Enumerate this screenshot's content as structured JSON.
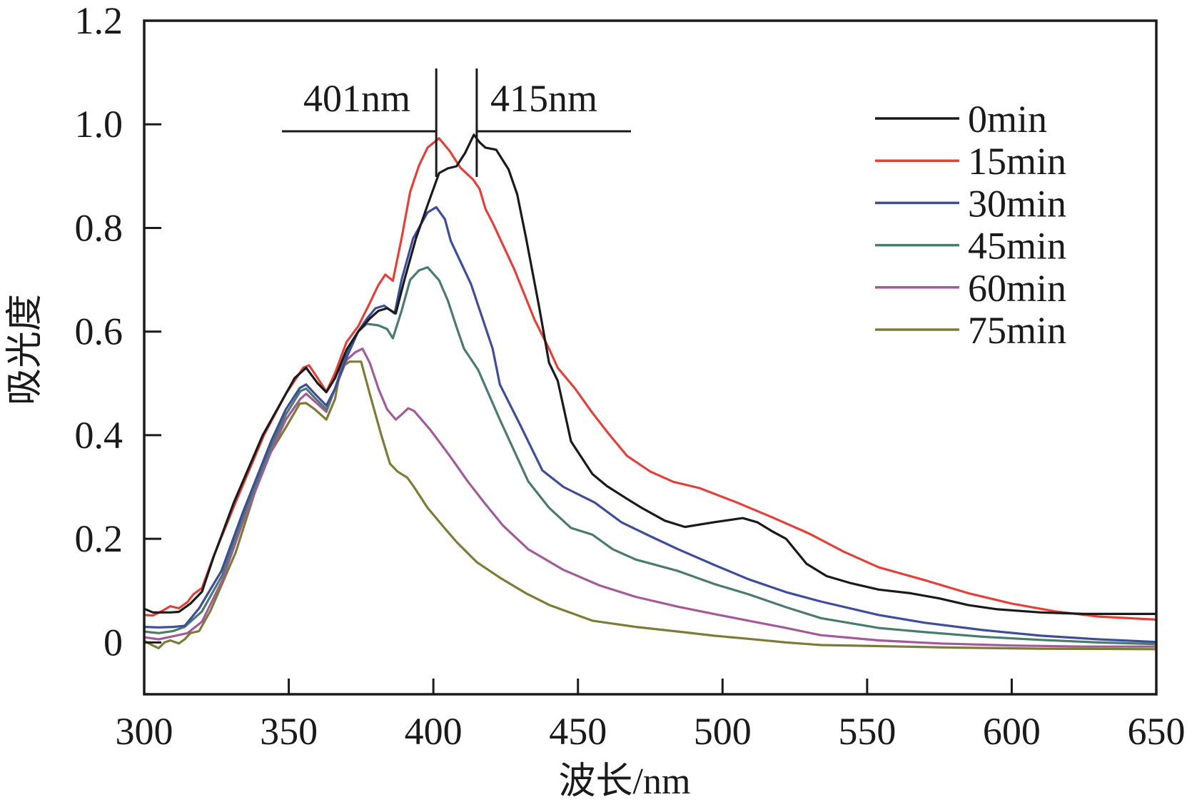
{
  "chart_data": {
    "type": "line",
    "title": "",
    "xlabel": "波长/nm",
    "ylabel": "吸光度",
    "xlim": [
      300,
      650
    ],
    "ylim": [
      -0.1,
      1.2
    ],
    "xticks": [
      300,
      350,
      400,
      450,
      500,
      550,
      600,
      650
    ],
    "xtick_labels": [
      "300",
      "350",
      "400",
      "450",
      "500",
      "550",
      "600",
      "650"
    ],
    "yticks": [
      0,
      0.2,
      0.4,
      0.6,
      0.8,
      1.0,
      1.2
    ],
    "ytick_labels": [
      "0",
      "0.2",
      "0.4",
      "0.6",
      "0.8",
      "1.0",
      "1.2"
    ],
    "grid": false,
    "legend_position": "top-right",
    "annotations": [
      {
        "label": "401nm",
        "x": 401,
        "side": "left"
      },
      {
        "label": "415nm",
        "x": 415,
        "side": "right"
      }
    ],
    "series": [
      {
        "name": "0min",
        "color": "#1a1a1a",
        "points": [
          [
            300,
            0.065
          ],
          [
            303,
            0.058
          ],
          [
            306,
            0.058
          ],
          [
            309,
            0.058
          ],
          [
            312,
            0.059
          ],
          [
            316,
            0.075
          ],
          [
            320,
            0.098
          ],
          [
            324,
            0.165
          ],
          [
            331,
            0.27
          ],
          [
            341,
            0.4
          ],
          [
            348,
            0.47
          ],
          [
            352,
            0.51
          ],
          [
            356,
            0.53
          ],
          [
            360,
            0.5
          ],
          [
            363,
            0.483
          ],
          [
            366,
            0.51
          ],
          [
            370,
            0.565
          ],
          [
            374,
            0.6
          ],
          [
            378,
            0.625
          ],
          [
            381,
            0.64
          ],
          [
            384,
            0.645
          ],
          [
            387,
            0.635
          ],
          [
            390,
            0.7
          ],
          [
            394,
            0.78
          ],
          [
            398,
            0.844
          ],
          [
            402,
            0.906
          ],
          [
            405,
            0.915
          ],
          [
            408,
            0.919
          ],
          [
            411,
            0.945
          ],
          [
            414,
            0.98
          ],
          [
            416,
            0.965
          ],
          [
            418,
            0.955
          ],
          [
            421.7,
            0.951
          ],
          [
            426,
            0.913
          ],
          [
            429,
            0.865
          ],
          [
            432,
            0.782
          ],
          [
            436.5,
            0.65
          ],
          [
            440,
            0.54
          ],
          [
            443,
            0.505
          ],
          [
            447.6,
            0.388
          ],
          [
            455,
            0.325
          ],
          [
            460,
            0.302
          ],
          [
            467,
            0.277
          ],
          [
            472,
            0.26
          ],
          [
            480,
            0.235
          ],
          [
            487,
            0.223
          ],
          [
            497,
            0.232
          ],
          [
            507,
            0.24
          ],
          [
            512,
            0.232
          ],
          [
            517,
            0.215
          ],
          [
            522,
            0.2
          ],
          [
            529,
            0.152
          ],
          [
            536,
            0.128
          ],
          [
            544,
            0.115
          ],
          [
            554,
            0.102
          ],
          [
            565,
            0.095
          ],
          [
            575,
            0.085
          ],
          [
            585,
            0.072
          ],
          [
            595,
            0.064
          ],
          [
            610,
            0.058
          ],
          [
            625,
            0.055
          ],
          [
            640,
            0.055
          ],
          [
            650,
            0.055
          ]
        ]
      },
      {
        "name": "15min",
        "color": "#e2403a",
        "points": [
          [
            300,
            0.053
          ],
          [
            303,
            0.052
          ],
          [
            306,
            0.06
          ],
          [
            309,
            0.07
          ],
          [
            312,
            0.066
          ],
          [
            315,
            0.078
          ],
          [
            317,
            0.093
          ],
          [
            320,
            0.105
          ],
          [
            324,
            0.166
          ],
          [
            331.6,
            0.27
          ],
          [
            341.5,
            0.401
          ],
          [
            349,
            0.48
          ],
          [
            355,
            0.53
          ],
          [
            357,
            0.535
          ],
          [
            360,
            0.51
          ],
          [
            363,
            0.484
          ],
          [
            366,
            0.52
          ],
          [
            370,
            0.58
          ],
          [
            374,
            0.61
          ],
          [
            378,
            0.655
          ],
          [
            381,
            0.69
          ],
          [
            383.4,
            0.71
          ],
          [
            386,
            0.698
          ],
          [
            389,
            0.78
          ],
          [
            392,
            0.87
          ],
          [
            395,
            0.92
          ],
          [
            398,
            0.955
          ],
          [
            402,
            0.973
          ],
          [
            405.7,
            0.948
          ],
          [
            409.4,
            0.916
          ],
          [
            413.8,
            0.893
          ],
          [
            416,
            0.875
          ],
          [
            418,
            0.837
          ],
          [
            420.5,
            0.81
          ],
          [
            428,
            0.72
          ],
          [
            435,
            0.623
          ],
          [
            440,
            0.567
          ],
          [
            443,
            0.53
          ],
          [
            449,
            0.49
          ],
          [
            455,
            0.443
          ],
          [
            461,
            0.4
          ],
          [
            467,
            0.36
          ],
          [
            475,
            0.33
          ],
          [
            483,
            0.31
          ],
          [
            492,
            0.298
          ],
          [
            505,
            0.27
          ],
          [
            517,
            0.242
          ],
          [
            530,
            0.21
          ],
          [
            542,
            0.175
          ],
          [
            554,
            0.145
          ],
          [
            570,
            0.12
          ],
          [
            585,
            0.095
          ],
          [
            600,
            0.075
          ],
          [
            615,
            0.06
          ],
          [
            630,
            0.05
          ],
          [
            650,
            0.044
          ]
        ]
      },
      {
        "name": "30min",
        "color": "#3d4d98",
        "points": [
          [
            300,
            0.03
          ],
          [
            305,
            0.029
          ],
          [
            310,
            0.03
          ],
          [
            314,
            0.032
          ],
          [
            319,
            0.066
          ],
          [
            326.7,
            0.138
          ],
          [
            334,
            0.249
          ],
          [
            344,
            0.39
          ],
          [
            349,
            0.45
          ],
          [
            353.8,
            0.491
          ],
          [
            356,
            0.498
          ],
          [
            359,
            0.48
          ],
          [
            363,
            0.457
          ],
          [
            366,
            0.49
          ],
          [
            370,
            0.55
          ],
          [
            374,
            0.6
          ],
          [
            377,
            0.625
          ],
          [
            380,
            0.645
          ],
          [
            383,
            0.65
          ],
          [
            386.6,
            0.635
          ],
          [
            389,
            0.7
          ],
          [
            393,
            0.78
          ],
          [
            398,
            0.83
          ],
          [
            401,
            0.84
          ],
          [
            404,
            0.817
          ],
          [
            406,
            0.775
          ],
          [
            413,
            0.692
          ],
          [
            420.5,
            0.567
          ],
          [
            423,
            0.498
          ],
          [
            430,
            0.42
          ],
          [
            437.7,
            0.332
          ],
          [
            445,
            0.3
          ],
          [
            455.8,
            0.27
          ],
          [
            465,
            0.232
          ],
          [
            475,
            0.205
          ],
          [
            484.6,
            0.18
          ],
          [
            497,
            0.15
          ],
          [
            509,
            0.122
          ],
          [
            522,
            0.097
          ],
          [
            534,
            0.079
          ],
          [
            554,
            0.053
          ],
          [
            570,
            0.038
          ],
          [
            590,
            0.024
          ],
          [
            610,
            0.013
          ],
          [
            630,
            0.006
          ],
          [
            650,
            0.001
          ]
        ]
      },
      {
        "name": "45min",
        "color": "#4b7a6e",
        "points": [
          [
            300,
            0.021
          ],
          [
            305,
            0.018
          ],
          [
            310,
            0.022
          ],
          [
            314,
            0.03
          ],
          [
            320,
            0.06
          ],
          [
            327,
            0.13
          ],
          [
            334,
            0.24
          ],
          [
            344,
            0.38
          ],
          [
            349,
            0.44
          ],
          [
            354,
            0.485
          ],
          [
            356,
            0.49
          ],
          [
            359,
            0.472
          ],
          [
            363,
            0.45
          ],
          [
            366,
            0.49
          ],
          [
            370,
            0.56
          ],
          [
            374,
            0.6
          ],
          [
            377,
            0.615
          ],
          [
            381,
            0.612
          ],
          [
            384,
            0.605
          ],
          [
            386,
            0.587
          ],
          [
            389,
            0.64
          ],
          [
            392,
            0.7
          ],
          [
            395,
            0.718
          ],
          [
            398,
            0.724
          ],
          [
            402,
            0.699
          ],
          [
            405,
            0.66
          ],
          [
            408,
            0.609
          ],
          [
            410.6,
            0.567
          ],
          [
            415.5,
            0.526
          ],
          [
            423,
            0.43
          ],
          [
            432.8,
            0.311
          ],
          [
            440,
            0.26
          ],
          [
            447.6,
            0.221
          ],
          [
            455,
            0.208
          ],
          [
            462,
            0.18
          ],
          [
            470,
            0.16
          ],
          [
            484.6,
            0.138
          ],
          [
            497,
            0.113
          ],
          [
            509,
            0.093
          ],
          [
            522,
            0.068
          ],
          [
            534,
            0.047
          ],
          [
            554,
            0.028
          ],
          [
            570,
            0.02
          ],
          [
            590,
            0.011
          ],
          [
            610,
            0.005
          ],
          [
            630,
            0.0
          ],
          [
            650,
            -0.003
          ]
        ]
      },
      {
        "name": "60min",
        "color": "#a25b9a",
        "points": [
          [
            300,
            0.01
          ],
          [
            305,
            0.006
          ],
          [
            310,
            0.012
          ],
          [
            315,
            0.018
          ],
          [
            320,
            0.04
          ],
          [
            327,
            0.12
          ],
          [
            334,
            0.23
          ],
          [
            344,
            0.37
          ],
          [
            349,
            0.43
          ],
          [
            354,
            0.47
          ],
          [
            356,
            0.48
          ],
          [
            359,
            0.465
          ],
          [
            363,
            0.445
          ],
          [
            366,
            0.49
          ],
          [
            370,
            0.545
          ],
          [
            373,
            0.56
          ],
          [
            375.5,
            0.567
          ],
          [
            378,
            0.54
          ],
          [
            381,
            0.49
          ],
          [
            384,
            0.45
          ],
          [
            387,
            0.43
          ],
          [
            389,
            0.44
          ],
          [
            391.3,
            0.452
          ],
          [
            393.3,
            0.447
          ],
          [
            399,
            0.41
          ],
          [
            405.7,
            0.36
          ],
          [
            412,
            0.31
          ],
          [
            418,
            0.267
          ],
          [
            424,
            0.226
          ],
          [
            432.8,
            0.18
          ],
          [
            445,
            0.14
          ],
          [
            457.5,
            0.11
          ],
          [
            470,
            0.088
          ],
          [
            484.6,
            0.069
          ],
          [
            497,
            0.055
          ],
          [
            509,
            0.042
          ],
          [
            522,
            0.028
          ],
          [
            534,
            0.014
          ],
          [
            554,
            0.004
          ],
          [
            575,
            -0.002
          ],
          [
            600,
            -0.006
          ],
          [
            625,
            -0.008
          ],
          [
            650,
            -0.008
          ]
        ]
      },
      {
        "name": "75min",
        "color": "#7d7b38",
        "points": [
          [
            300,
            0.003
          ],
          [
            303,
            -0.006
          ],
          [
            305,
            -0.011
          ],
          [
            307,
            0.0
          ],
          [
            309,
            0.004
          ],
          [
            312,
            -0.002
          ],
          [
            314,
            0.006
          ],
          [
            316,
            0.018
          ],
          [
            319,
            0.022
          ],
          [
            323,
            0.062
          ],
          [
            331.6,
            0.173
          ],
          [
            341.5,
            0.346
          ],
          [
            349,
            0.415
          ],
          [
            353.8,
            0.461
          ],
          [
            356,
            0.462
          ],
          [
            359,
            0.45
          ],
          [
            363,
            0.43
          ],
          [
            366,
            0.47
          ],
          [
            368,
            0.53
          ],
          [
            371,
            0.542
          ],
          [
            375,
            0.542
          ],
          [
            378,
            0.48
          ],
          [
            382,
            0.4
          ],
          [
            385,
            0.345
          ],
          [
            387.6,
            0.33
          ],
          [
            391,
            0.318
          ],
          [
            393.3,
            0.3
          ],
          [
            398,
            0.26
          ],
          [
            404,
            0.22
          ],
          [
            408,
            0.194
          ],
          [
            415,
            0.155
          ],
          [
            423,
            0.125
          ],
          [
            432,
            0.095
          ],
          [
            440.2,
            0.072
          ],
          [
            455,
            0.042
          ],
          [
            470,
            0.03
          ],
          [
            484.6,
            0.021
          ],
          [
            497,
            0.013
          ],
          [
            509,
            0.007
          ],
          [
            522,
            0.0
          ],
          [
            534,
            -0.005
          ],
          [
            554,
            -0.007
          ],
          [
            580,
            -0.01
          ],
          [
            610,
            -0.012
          ],
          [
            650,
            -0.013
          ]
        ]
      }
    ]
  }
}
